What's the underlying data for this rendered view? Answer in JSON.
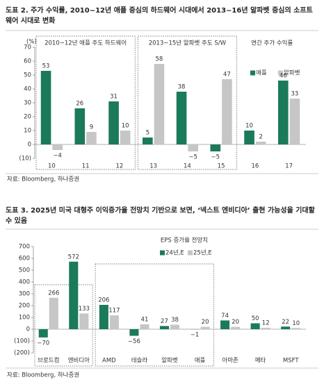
{
  "chart_data": [
    {
      "type": "bar",
      "title": "도표 2. 주가 수익률, 2010~12년 애플 중심의 하드웨어 시대에서 2013~16년 알파벳 중심의 소프트웨어 시대로 변화",
      "y_label": "(%)",
      "categories": [
        "10",
        "11",
        "12",
        "13",
        "14",
        "15",
        "16",
        "17"
      ],
      "series": [
        {
          "name": "애플",
          "color": "#1b7a5a",
          "values": [
            53,
            26,
            31,
            5,
            38,
            -5,
            10,
            46
          ],
          "value_labels": [
            "53",
            "26",
            "31",
            "5",
            "38",
            "−5",
            "10",
            "46"
          ]
        },
        {
          "name": "알파벳",
          "color": "#c6c6c6",
          "values": [
            -4,
            9,
            10,
            58,
            -5,
            47,
            2,
            33
          ],
          "value_labels": [
            "−4",
            "9",
            "10",
            "58",
            "−5",
            "47",
            "2",
            "33"
          ]
        }
      ],
      "ylim": [
        -10,
        70
      ],
      "yticks": [
        {
          "value": -10,
          "label": "(10)"
        },
        0,
        10,
        20,
        30,
        40,
        50,
        60,
        70
      ],
      "annotations": [
        "2010~12년 애플 주도 하드웨어",
        "2013~15년 알파벳 주도 S/W",
        "연간 주가 수익률"
      ],
      "source": "자료: Bloomberg, 하나증권"
    },
    {
      "type": "bar",
      "title": "도표 3. 2025년 미국 대형주 이익증가율 전망치 기반으로 보면, ‘넥스트 엔비디아’ 출현 가능성을 기대할 수 있음",
      "categories": [
        "브로드컴",
        "엔비디아",
        "AMD",
        "테슬라",
        "알파벳",
        "애플",
        "아마존",
        "메타",
        "MSFT"
      ],
      "legend_title": "EPS 증가율 전망치",
      "series": [
        {
          "name": "24년,E",
          "color": "#1b7a5a",
          "values": [
            -70,
            572,
            206,
            -56,
            27,
            -1,
            74,
            50,
            22
          ],
          "value_labels": [
            "−70",
            "572",
            "206",
            "−56",
            "27",
            "−1",
            "74",
            "50",
            "22"
          ]
        },
        {
          "name": "25년,E",
          "color": "#c6c6c6",
          "values": [
            266,
            133,
            117,
            41,
            38,
            20,
            20,
            12,
            10
          ]
        }
      ],
      "ylim": [
        -200,
        700
      ],
      "yticks": [
        {
          "value": -200,
          "label": "(200)"
        },
        {
          "value": -100,
          "label": "(100)"
        },
        0,
        100,
        200,
        300,
        400,
        500,
        600,
        700
      ],
      "source": "자료: Bloomberg, 하나증권"
    }
  ]
}
